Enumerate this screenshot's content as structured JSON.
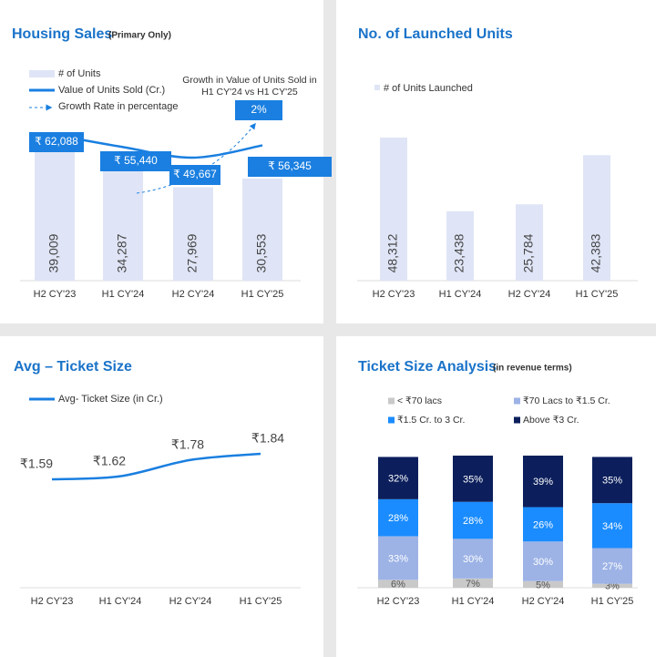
{
  "chart_data": [
    {
      "type": "combo",
      "title": "Housing Sales",
      "subtitle": "(Primary Only)",
      "categories": [
        "H2 CY'23",
        "H1 CY'24",
        "H2 CY'24",
        "H1 CY'25"
      ],
      "series": [
        {
          "name": "# of Units",
          "type": "bar",
          "color": "#dfe5f6",
          "values": [
            39009,
            34287,
            27969,
            30553
          ],
          "value_labels": [
            "39,009",
            "34,287",
            "27,969",
            "30,553"
          ]
        },
        {
          "name": "Value of Units Sold (Cr.)",
          "type": "line",
          "color": "#1a7fe0",
          "values": [
            62088,
            55440,
            49667,
            56345
          ],
          "value_labels": [
            "₹ 62,088",
            "₹ 55,440",
            "₹ 49,667",
            "₹ 56,345"
          ]
        }
      ],
      "growth": {
        "legend": "Growth Rate in percentage",
        "text": [
          "Growth in Value of Units Sold in",
          "H1 CY'24 vs H1 CY'25"
        ],
        "value": 2,
        "value_label": "2%"
      }
    },
    {
      "type": "bar",
      "title": "No. of Launched Units",
      "categories": [
        "H2 CY'23",
        "H1 CY'24",
        "H2 CY'24",
        "H1 CY'25"
      ],
      "series": [
        {
          "name": "# of Units Launched",
          "color": "#dfe5f6",
          "values": [
            48312,
            23438,
            25784,
            42383
          ],
          "value_labels": [
            "48,312",
            "23,438",
            "25,784",
            "42,383"
          ]
        }
      ]
    },
    {
      "type": "line",
      "title": "Avg – Ticket Size",
      "categories": [
        "H2 CY'23",
        "H1 CY'24",
        "H2 CY'24",
        "H1 CY'25"
      ],
      "series": [
        {
          "name": "Avg- Ticket Size (in Cr.)",
          "color": "#1a7fe0",
          "values": [
            1.59,
            1.62,
            1.78,
            1.84
          ],
          "value_labels": [
            "₹1.59",
            "₹1.62",
            "₹1.78",
            "₹1.84"
          ]
        }
      ]
    },
    {
      "type": "stacked_bar",
      "title": "Ticket Size Analysis",
      "subtitle": "(in revenue terms)",
      "categories": [
        "H2 CY'23",
        "H1  CY'24",
        "H2 CY'24",
        "H1  CY'25"
      ],
      "series": [
        {
          "name": "< ₹70 lacs",
          "color": "#c9c9c9",
          "values": [
            6,
            7,
            5,
            3
          ],
          "value_labels": [
            "6%",
            "7%",
            "5%",
            "3%"
          ]
        },
        {
          "name": "₹70 Lacs to ₹1.5 Cr.",
          "color": "#9db3e6",
          "values": [
            33,
            30,
            30,
            27
          ],
          "value_labels": [
            "33%",
            "30%",
            "30%",
            "27%"
          ]
        },
        {
          "name": "₹1.5 Cr. to 3 Cr.",
          "color": "#1a8cff",
          "values": [
            28,
            28,
            26,
            34
          ],
          "value_labels": [
            "28%",
            "28%",
            "26%",
            "34%"
          ]
        },
        {
          "name": "Above ₹3 Cr.",
          "color": "#0c1f5c",
          "values": [
            32,
            35,
            39,
            35
          ],
          "value_labels": [
            "32%",
            "35%",
            "39%",
            "35%"
          ]
        }
      ]
    }
  ]
}
